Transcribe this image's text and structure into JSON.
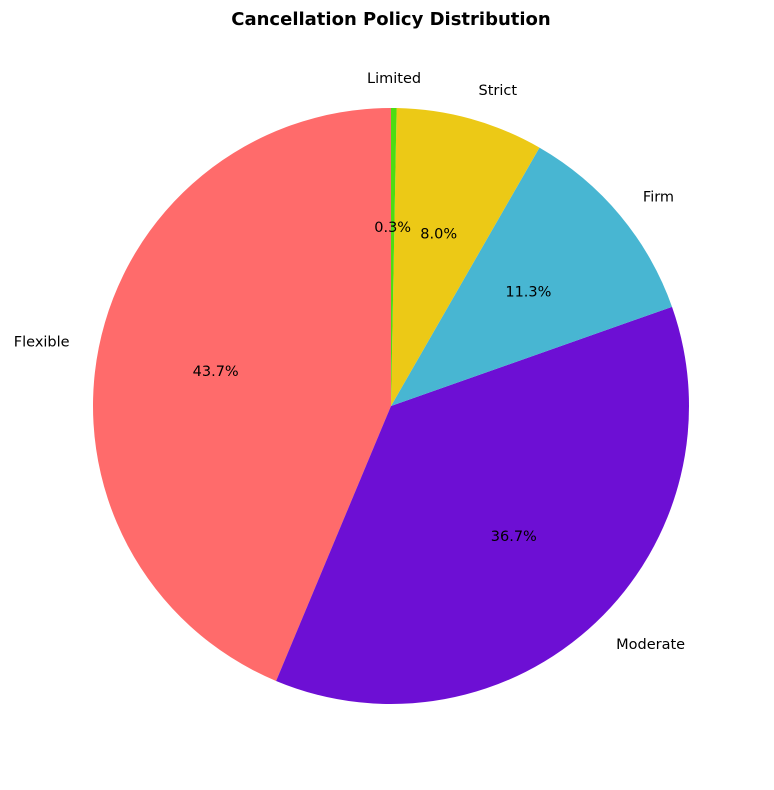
{
  "chart_data": {
    "type": "pie",
    "title": "Cancellation Policy Distribution",
    "start_angle_deg": 90,
    "direction": "counterclockwise",
    "slices": [
      {
        "label": "Flexible",
        "value": 43.7,
        "pct_text": "43.7%",
        "color": "#FF6B6B"
      },
      {
        "label": "Moderate",
        "value": 36.7,
        "pct_text": "36.7%",
        "color": "#6D0FD4"
      },
      {
        "label": "Firm",
        "value": 11.3,
        "pct_text": "11.3%",
        "color": "#48B6D2"
      },
      {
        "label": "Strict",
        "value": 8.0,
        "pct_text": "8.0%",
        "color": "#ECC916"
      },
      {
        "label": "Limited",
        "value": 0.3,
        "pct_text": "0.3%",
        "color": "#4CDD12"
      }
    ]
  }
}
